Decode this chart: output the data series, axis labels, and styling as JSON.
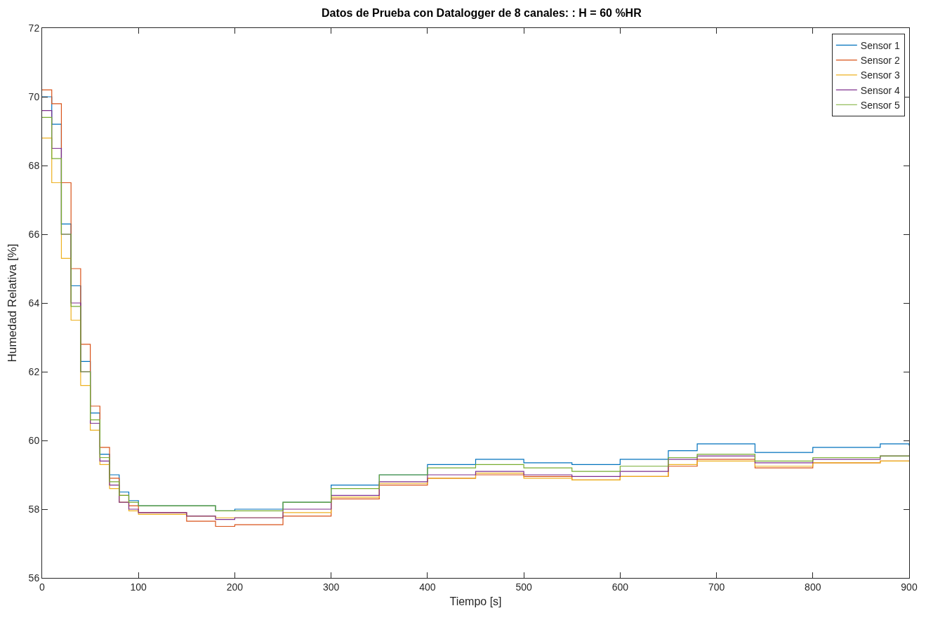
{
  "chart_data": {
    "type": "step",
    "title": "Datos de Prueba con Datalogger de 8 canales: : H = 60 %HR",
    "xlabel": "Tiempo [s]",
    "ylabel": "Humedad Relativa [%]",
    "x": [
      0,
      10,
      20,
      30,
      40,
      50,
      60,
      70,
      80,
      90,
      100,
      150,
      180,
      200,
      250,
      300,
      350,
      400,
      450,
      500,
      550,
      600,
      650,
      680,
      740,
      800,
      870,
      900
    ],
    "series": [
      {
        "name": "Sensor 1",
        "color": "#0072bd",
        "values": [
          70.0,
          69.2,
          66.3,
          64.5,
          62.3,
          60.8,
          59.6,
          59.0,
          58.5,
          58.25,
          58.1,
          58.1,
          57.95,
          58.0,
          58.2,
          58.7,
          59.0,
          59.3,
          59.45,
          59.35,
          59.3,
          59.45,
          59.7,
          59.9,
          59.65,
          59.8,
          59.9,
          59.85
        ]
      },
      {
        "name": "Sensor 2",
        "color": "#d95319",
        "values": [
          70.2,
          69.8,
          67.5,
          65.0,
          62.8,
          61.0,
          59.8,
          58.9,
          58.4,
          58.1,
          57.9,
          57.65,
          57.5,
          57.55,
          57.8,
          58.3,
          58.7,
          58.9,
          59.0,
          58.95,
          58.85,
          58.95,
          59.25,
          59.45,
          59.2,
          59.35,
          59.4,
          59.4
        ]
      },
      {
        "name": "Sensor 3",
        "color": "#edb120",
        "values": [
          68.8,
          67.5,
          65.3,
          63.5,
          61.6,
          60.3,
          59.3,
          58.6,
          58.2,
          57.95,
          57.85,
          57.8,
          57.75,
          57.75,
          57.9,
          58.35,
          58.75,
          58.9,
          59.05,
          58.9,
          58.85,
          58.95,
          59.3,
          59.4,
          59.25,
          59.35,
          59.4,
          59.4
        ]
      },
      {
        "name": "Sensor 4",
        "color": "#7e2f8e",
        "values": [
          69.6,
          68.5,
          66.0,
          64.0,
          62.0,
          60.5,
          59.4,
          58.7,
          58.2,
          58.0,
          57.9,
          57.8,
          57.7,
          57.75,
          58.0,
          58.4,
          58.8,
          59.0,
          59.1,
          59.0,
          58.95,
          59.1,
          59.45,
          59.55,
          59.35,
          59.45,
          59.55,
          59.55
        ]
      },
      {
        "name": "Sensor 5",
        "color": "#77ac30",
        "values": [
          69.4,
          68.2,
          66.0,
          63.9,
          62.0,
          60.6,
          59.5,
          58.8,
          58.4,
          58.2,
          58.1,
          58.1,
          57.95,
          57.95,
          58.2,
          58.6,
          59.0,
          59.2,
          59.3,
          59.2,
          59.1,
          59.25,
          59.5,
          59.6,
          59.4,
          59.5,
          59.55,
          59.55
        ]
      }
    ],
    "xlim": [
      0,
      900
    ],
    "xticks": [
      0,
      100,
      200,
      300,
      400,
      500,
      600,
      700,
      800,
      900
    ],
    "ylim": [
      56,
      72
    ],
    "yticks": [
      56,
      58,
      60,
      62,
      64,
      66,
      68,
      70,
      72
    ],
    "grid": false,
    "legend": "top right",
    "line_style": "solid",
    "marker": "none"
  }
}
